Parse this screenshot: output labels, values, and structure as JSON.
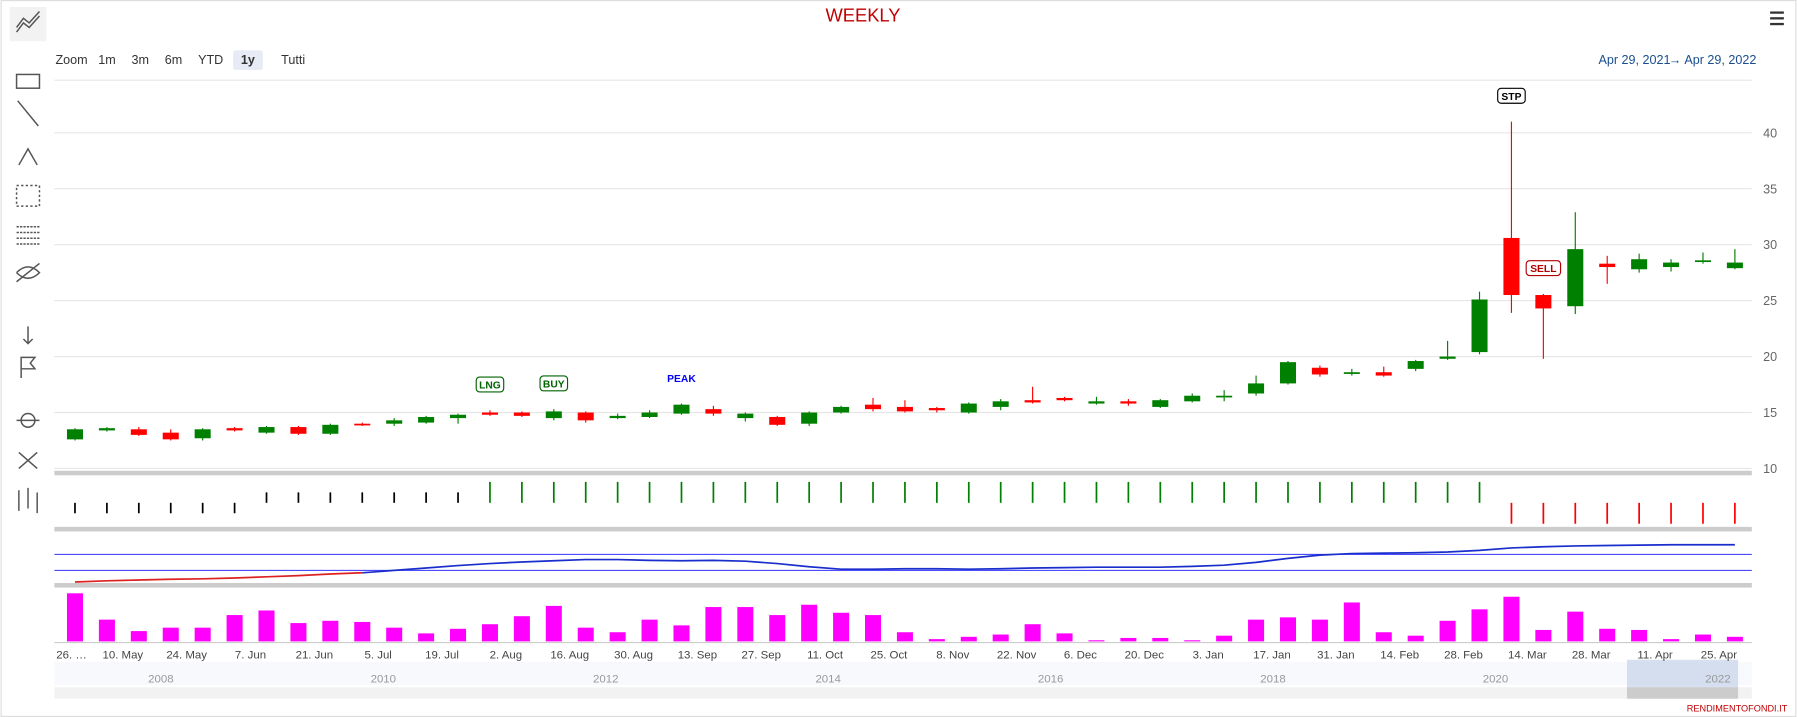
{
  "chart_data": {
    "type": "candlestick",
    "title": "WEEKLY",
    "zoom_label": "Zoom",
    "zoom_buttons": [
      "1m",
      "3m",
      "6m",
      "YTD",
      "1y",
      "Tutti"
    ],
    "date_from": "Apr 29, 2021",
    "date_arrow": "→",
    "date_to": "Apr 29, 2022",
    "credit": "RENDIMENTOFONDI.IT",
    "up_color": "#008000",
    "down_color": "#ff0000",
    "open": [
      12.6,
      13.4,
      13.5,
      13.2,
      12.7,
      13.6,
      13.2,
      13.7,
      13.1,
      14.0,
      14.0,
      14.1,
      14.5,
      15.0,
      15.0,
      14.5,
      15.0,
      14.5,
      14.6,
      14.9,
      15.3,
      14.5,
      14.6,
      14.0,
      15.0,
      15.7,
      15.5,
      15.4,
      15.0,
      15.5,
      16.1,
      16.3,
      15.8,
      16.0,
      15.5,
      16.0,
      16.4,
      16.7,
      17.6,
      19.0,
      18.5,
      18.6,
      18.9,
      19.8,
      20.4,
      30.6,
      25.5,
      24.5,
      28.3,
      27.8,
      28.0,
      28.5,
      27.9
    ],
    "high": [
      13.6,
      13.7,
      13.7,
      13.5,
      13.6,
      13.7,
      13.8,
      13.8,
      14.0,
      14.1,
      14.5,
      14.7,
      14.9,
      15.2,
      15.1,
      15.3,
      15.1,
      14.9,
      15.2,
      15.8,
      15.6,
      15.0,
      14.7,
      15.1,
      15.6,
      16.3,
      16.1,
      15.5,
      15.9,
      16.2,
      17.3,
      16.4,
      16.4,
      16.2,
      16.2,
      16.7,
      17.0,
      18.3,
      19.6,
      19.2,
      18.9,
      19.1,
      19.7,
      21.4,
      25.8,
      41.0,
      25.6,
      32.9,
      29.0,
      29.2,
      28.7,
      29.3,
      29.6
    ],
    "low": [
      12.5,
      13.3,
      12.9,
      12.5,
      12.5,
      13.3,
      13.1,
      13.0,
      13.0,
      13.8,
      13.8,
      14.0,
      14.0,
      14.7,
      14.6,
      14.3,
      14.1,
      14.4,
      14.5,
      14.8,
      14.7,
      14.2,
      13.8,
      13.8,
      14.9,
      15.1,
      15.0,
      15.0,
      14.9,
      15.2,
      15.8,
      16.0,
      15.7,
      15.6,
      15.4,
      15.9,
      16.0,
      16.5,
      17.5,
      18.2,
      18.3,
      18.2,
      18.7,
      19.7,
      20.2,
      23.9,
      19.8,
      23.8,
      26.5,
      27.5,
      27.6,
      28.3,
      27.8
    ],
    "close": [
      13.5,
      13.6,
      13.0,
      12.6,
      13.5,
      13.4,
      13.7,
      13.1,
      13.9,
      13.9,
      14.3,
      14.6,
      14.8,
      14.8,
      14.7,
      15.1,
      14.3,
      14.7,
      15.0,
      15.7,
      14.9,
      14.9,
      13.9,
      15.0,
      15.5,
      15.3,
      15.1,
      15.2,
      15.8,
      16.0,
      15.9,
      16.1,
      16.0,
      15.8,
      16.1,
      16.5,
      16.5,
      17.6,
      19.5,
      18.4,
      18.6,
      18.3,
      19.6,
      20.0,
      25.1,
      25.5,
      24.3,
      29.6,
      28.0,
      28.7,
      28.4,
      28.6,
      28.4
    ],
    "ylim": [
      10,
      44.7
    ],
    "yticks": [
      10,
      15,
      20,
      25,
      30,
      35,
      40
    ],
    "grid": true,
    "x_labels": [
      "26. …",
      "10. May",
      "24. May",
      "7. Jun",
      "21. Jun",
      "5. Jul",
      "19. Jul",
      "2. Aug",
      "16. Aug",
      "30. Aug",
      "13. Sep",
      "27. Sep",
      "11. Oct",
      "25. Oct",
      "8. Nov",
      "22. Nov",
      "6. Dec",
      "20. Dec",
      "3. Jan",
      "17. Jan",
      "31. Jan",
      "14. Feb",
      "28. Feb",
      "14. Mar",
      "28. Mar",
      "11. Apr",
      "25. Apr"
    ],
    "flags": [
      null,
      null,
      null,
      null,
      null,
      null,
      null,
      null,
      null,
      null,
      null,
      null,
      null,
      "LNG",
      null,
      "BUY",
      null,
      null,
      null,
      "PEAK",
      null,
      null,
      null,
      null,
      null,
      null,
      null,
      null,
      null,
      null,
      null,
      null,
      null,
      null,
      null,
      null,
      null,
      null,
      null,
      null,
      null,
      null,
      null,
      null,
      null,
      "STP",
      "SELL",
      null,
      null,
      null,
      null,
      null,
      null
    ],
    "flag_colors": [
      null,
      null,
      null,
      null,
      null,
      null,
      null,
      null,
      null,
      null,
      null,
      null,
      null,
      "#006400",
      null,
      "#006400",
      null,
      null,
      null,
      "#0000ff",
      null,
      null,
      null,
      null,
      null,
      null,
      null,
      null,
      null,
      null,
      null,
      null,
      null,
      null,
      null,
      null,
      null,
      null,
      null,
      null,
      null,
      null,
      null,
      null,
      null,
      "#000000",
      "#b00000",
      null,
      null,
      null,
      null,
      null,
      null
    ],
    "signal": {
      "ylim": [
        -2.3,
        2.3
      ],
      "values": [
        -1,
        -1,
        -1,
        -1,
        -1,
        -1,
        1,
        1,
        1,
        1,
        1,
        1,
        1,
        2,
        2,
        2,
        2,
        2,
        2,
        2,
        2,
        2,
        2,
        2,
        2,
        2,
        2,
        2,
        2,
        2,
        2,
        2,
        2,
        2,
        2,
        2,
        2,
        2,
        2,
        2,
        2,
        2,
        2,
        2,
        2,
        -2,
        -2,
        -2,
        -2,
        -2,
        -2,
        -2,
        -2
      ],
      "colors": [
        "#000",
        "#000",
        "#000",
        "#000",
        "#000",
        "#000",
        "#000",
        "#000",
        "#000",
        "#000",
        "#000",
        "#000",
        "#000",
        "#008000",
        "#008000",
        "#008000",
        "#008000",
        "#008000",
        "#008000",
        "#008000",
        "#008000",
        "#008000",
        "#008000",
        "#008000",
        "#008000",
        "#008000",
        "#008000",
        "#008000",
        "#008000",
        "#008000",
        "#008000",
        "#008000",
        "#008000",
        "#008000",
        "#008000",
        "#008000",
        "#008000",
        "#008000",
        "#008000",
        "#008000",
        "#008000",
        "#008000",
        "#008000",
        "#008000",
        "#008000",
        "#ff0000",
        "#ff0000",
        "#ff0000",
        "#ff0000",
        "#ff0000",
        "#ff0000",
        "#ff0000",
        "#ff0000"
      ]
    },
    "indicator": {
      "ylim": [
        -4.3,
        124.3
      ],
      "levels": [
        30,
        70
      ],
      "level_color": "#3333ff",
      "series": [
        {
          "color": "#dd2222",
          "values": [
            1,
            4,
            6,
            8,
            9,
            11,
            14,
            17,
            21,
            24,
            null,
            null,
            null,
            null,
            null,
            null,
            null,
            null,
            null,
            null,
            null,
            null,
            null,
            null,
            null,
            null,
            null,
            null,
            null,
            null,
            null,
            null,
            null,
            null,
            null,
            null,
            null,
            null,
            null,
            null,
            null,
            null,
            null,
            null,
            null,
            null,
            null,
            null,
            null,
            null,
            null,
            null,
            null
          ]
        },
        {
          "color": "#1a2ecc",
          "values": [
            null,
            null,
            null,
            null,
            null,
            null,
            null,
            null,
            null,
            24,
            30,
            36,
            42,
            47,
            51,
            54,
            57,
            57,
            55,
            54,
            55,
            53,
            47,
            39,
            33,
            33,
            34,
            34,
            33,
            34,
            36,
            37,
            38,
            38,
            38,
            40,
            43,
            50,
            60,
            68,
            72,
            73,
            74,
            76,
            80,
            86,
            89,
            91,
            92,
            93,
            94,
            94,
            94
          ]
        }
      ]
    },
    "volume": {
      "color": "#ff00ff",
      "ylim": [
        0,
        45
      ],
      "values": [
        42,
        19,
        9,
        12,
        12,
        23,
        27,
        16,
        18,
        17,
        12,
        7,
        11,
        15,
        22,
        31,
        12,
        8,
        19,
        14,
        30,
        30,
        23,
        32,
        25,
        23,
        8,
        2,
        4,
        6,
        15,
        7,
        1,
        3,
        3,
        1,
        5,
        19,
        21,
        19,
        34,
        8,
        5,
        18,
        28,
        39,
        10,
        26,
        11,
        10,
        2,
        6,
        4
      ]
    },
    "navigator_years": [
      "2008",
      "2010",
      "2012",
      "2014",
      "2016",
      "2018",
      "2020",
      "2022"
    ]
  }
}
